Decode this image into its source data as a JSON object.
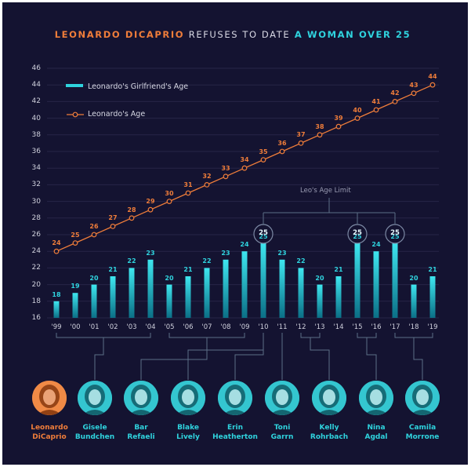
{
  "title": {
    "part1": "LEONARDO DICAPRIO",
    "part2": "REFUSES TO DATE",
    "part3": "A WOMAN OVER 25"
  },
  "colors": {
    "background": "#141331",
    "orange": "#ef7d3a",
    "cyan": "#2fd3de",
    "text": "#cfd0dc"
  },
  "chart_data": {
    "type": "bar",
    "categories": [
      "'99",
      "'00",
      "'01",
      "'02",
      "'03",
      "'04",
      "'05",
      "'06",
      "'07",
      "'08",
      "'09",
      "'10",
      "'11",
      "'12",
      "'13",
      "'14",
      "'15",
      "'16",
      "'17",
      "'18",
      "'19"
    ],
    "series": [
      {
        "name": "Leonardo's Girlfriend's Age",
        "type": "bar",
        "values": [
          18,
          19,
          20,
          21,
          22,
          23,
          20,
          21,
          22,
          23,
          24,
          25,
          23,
          22,
          20,
          21,
          25,
          24,
          25,
          20,
          21
        ]
      },
      {
        "name": "Leonardo's Age",
        "type": "line",
        "values": [
          24,
          25,
          26,
          27,
          28,
          29,
          30,
          31,
          32,
          33,
          34,
          35,
          36,
          37,
          38,
          39,
          40,
          41,
          42,
          43,
          44
        ]
      }
    ],
    "yticks": [
      16,
      18,
      20,
      22,
      24,
      26,
      28,
      30,
      32,
      34,
      36,
      38,
      40,
      42,
      44,
      46
    ],
    "ylim": [
      16,
      46
    ],
    "grid": true,
    "legend": "top-left",
    "annotation": "Leo's Age Limit",
    "limit_indices": [
      11,
      16,
      18
    ]
  },
  "people": [
    {
      "name1": "Leonardo",
      "name2": "DiCaprio",
      "highlight": true,
      "years": []
    },
    {
      "name1": "Gisele",
      "name2": "Bundchen",
      "years": [
        0,
        5
      ]
    },
    {
      "name1": "Bar",
      "name2": "Refaeli",
      "years": [
        6,
        10
      ]
    },
    {
      "name1": "Blake",
      "name2": "Lively",
      "years": [
        11
      ]
    },
    {
      "name1": "Erin",
      "name2": "Heatherton",
      "years": [
        11
      ]
    },
    {
      "name1": "Toni",
      "name2": "Garrn",
      "years": [
        12
      ]
    },
    {
      "name1": "Kelly",
      "name2": "Rohrbach",
      "years": [
        13,
        14
      ]
    },
    {
      "name1": "Nina",
      "name2": "Agdal",
      "years": [
        16,
        17
      ]
    },
    {
      "name1": "Camila",
      "name2": "Morrone",
      "years": [
        18,
        20
      ]
    }
  ]
}
